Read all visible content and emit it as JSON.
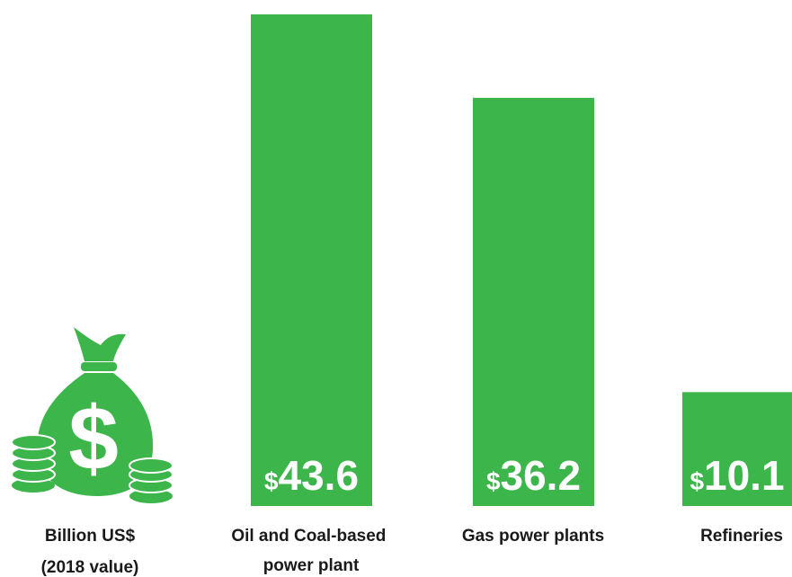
{
  "chart_data": {
    "type": "bar",
    "unit": "Billion US$",
    "unit_note": "(2018 value)",
    "categories": [
      "Oil and Coal-based power plant",
      "Gas power plants",
      "Refineries"
    ],
    "values": [
      43.6,
      36.2,
      10.1
    ],
    "value_labels": [
      "$43.6",
      "$36.2",
      "$10.1"
    ],
    "color": "#3cb54a",
    "ylim": [
      0,
      44
    ]
  }
}
